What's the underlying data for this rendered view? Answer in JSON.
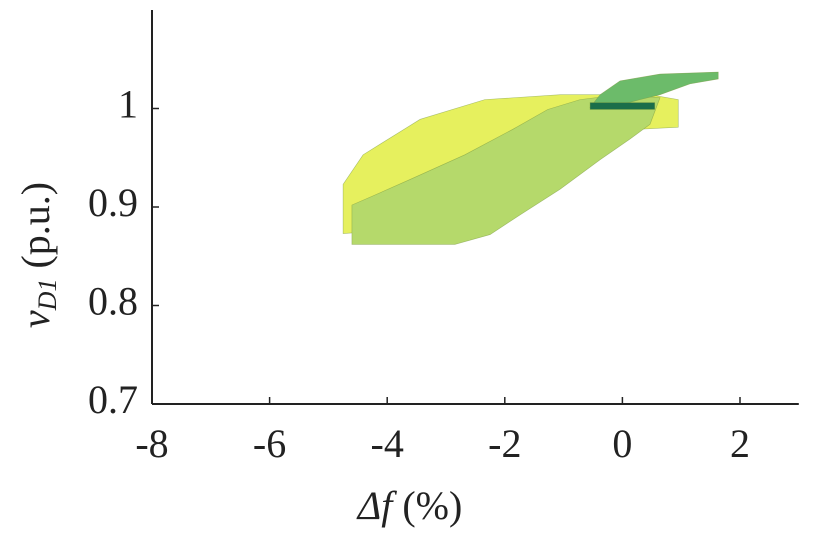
{
  "chart_data": {
    "type": "polygon",
    "xlabel": {
      "symbol": "Δf",
      "unit": "(%)"
    },
    "ylabel": {
      "symbol": "v",
      "subscript": "D1",
      "unit": "(p.u.)"
    },
    "xlim": [
      -8,
      3
    ],
    "ylim": [
      0.7,
      1.1
    ],
    "xticks": [
      -8,
      -6,
      -4,
      -2,
      0,
      2
    ],
    "yticks": [
      0.7,
      0.8,
      0.9,
      1
    ],
    "series": [
      {
        "color": "#e6f05e",
        "x": [
          -4.75,
          -4.75,
          -4.41,
          -3.44,
          -2.34,
          -1.06,
          0.47,
          0.95,
          0.95,
          0.3,
          -1.06,
          -2.42,
          -3.78
        ],
        "y": [
          0.873,
          0.923,
          0.953,
          0.989,
          1.009,
          1.014,
          1.014,
          1.009,
          0.981,
          0.979,
          0.948,
          0.908,
          0.877
        ]
      },
      {
        "color": "#b5d96b",
        "x": [
          -4.6,
          -4.6,
          -4.29,
          -3.61,
          -2.68,
          -1.86,
          -1.27,
          -0.72,
          -0.04,
          0.64,
          0.47,
          0.13,
          -0.38,
          -1.06,
          -1.74,
          -2.25,
          -2.85
        ],
        "y": [
          0.862,
          0.902,
          0.91,
          0.928,
          0.953,
          0.979,
          0.999,
          1.009,
          1.014,
          1.011,
          0.984,
          0.969,
          0.948,
          0.918,
          0.892,
          0.872,
          0.862
        ]
      },
      {
        "color": "#6cbb6a",
        "x": [
          -0.55,
          -0.38,
          -0.04,
          0.64,
          1.63,
          1.63,
          1.15,
          0.64,
          0.3,
          -0.21
        ],
        "y": [
          1.001,
          1.014,
          1.028,
          1.035,
          1.037,
          1.03,
          1.025,
          1.014,
          1.009,
          1.001
        ]
      },
      {
        "color": "#1b6e4a",
        "x": [
          -0.55,
          0.55,
          0.55,
          -0.55
        ],
        "y": [
          0.999,
          0.999,
          1.006,
          1.006
        ]
      }
    ]
  }
}
